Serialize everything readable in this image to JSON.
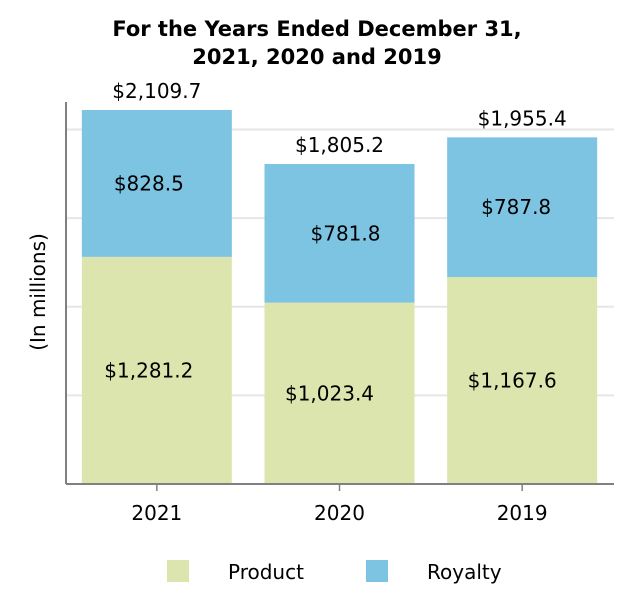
{
  "chart_data": {
    "type": "bar",
    "stacked": true,
    "title_lines": [
      "For the Years Ended December 31,",
      "2021, 2020 and 2019"
    ],
    "ylabel": "(In millions)",
    "xlabel": "",
    "categories": [
      "2021",
      "2020",
      "2019"
    ],
    "series": [
      {
        "name": "Product",
        "values": [
          1281.2,
          1023.4,
          1167.6
        ],
        "labels": [
          "$1,281.2",
          "$1,023.4",
          "$1,167.6"
        ],
        "color": "#DCE5AD"
      },
      {
        "name": "Royalty",
        "values": [
          828.5,
          781.8,
          787.8
        ],
        "labels": [
          "$828.5",
          "$781.8",
          "$787.8"
        ],
        "color": "#7DC3E2"
      }
    ],
    "totals": [
      2109.7,
      1805.2,
      1955.4
    ],
    "total_labels": [
      "$2,109.7",
      "$1,805.2",
      "$1,955.4"
    ],
    "ylim": [
      0,
      2200
    ],
    "grid": true,
    "legend_position": "bottom-center"
  }
}
